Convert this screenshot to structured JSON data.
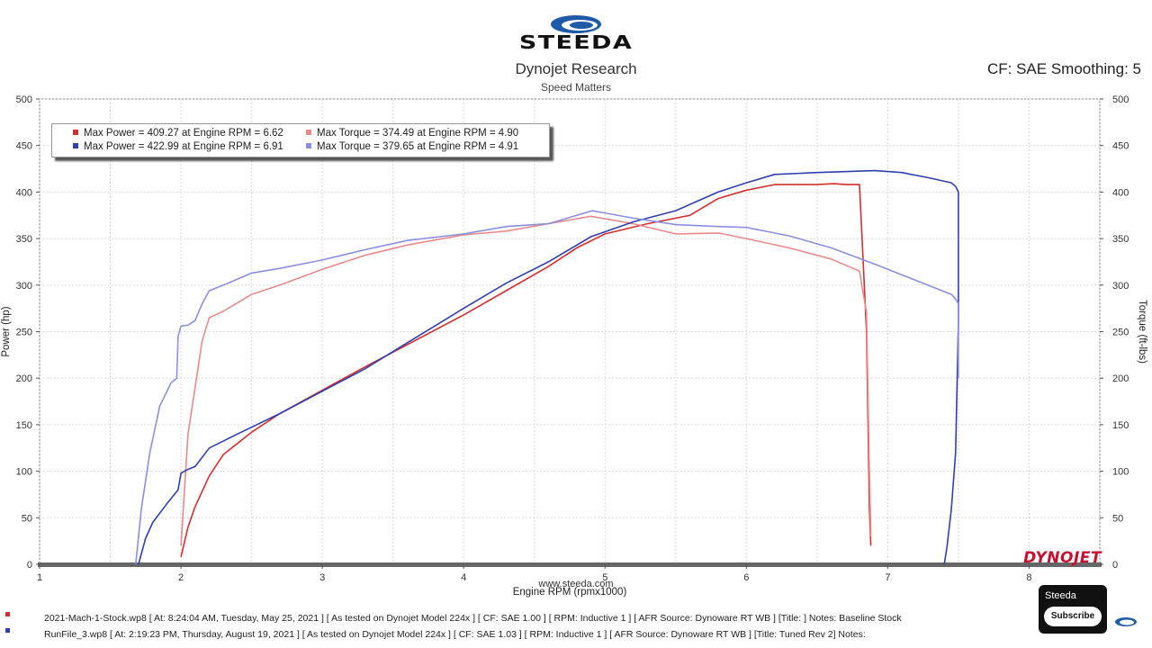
{
  "header": {
    "brand": "STEEDA",
    "title": "Dynojet Research",
    "subtitle": "Speed Matters",
    "cf": "CF: SAE Smoothing: 5"
  },
  "watermark": "DYNOJET",
  "url": "www.steeda.com",
  "legend": [
    {
      "text": "Max Power = 409.27 at Engine RPM = 6.62",
      "color": "#d32f2f"
    },
    {
      "text": "Max Torque = 374.49 at Engine RPM = 4.90",
      "color": "#e88a8a"
    },
    {
      "text": "Max Power = 422.99 at Engine RPM = 6.91",
      "color": "#2f3fb0"
    },
    {
      "text": "Max Torque = 379.65 at Engine RPM = 4.91",
      "color": "#8a8fe0"
    }
  ],
  "footer": [
    {
      "text": "2021-Mach-1-Stock.wp8 [ At: 8:24:04 AM, Tuesday, May 25, 2021 ] [ As tested on Dynojet Model 224x ] [ CF: SAE 1.00 ] [ RPM: Inductive 1 ] [ AFR Source: Dynoware RT WB ] [Title: ]  Notes: Baseline Stock",
      "color": "#d32f2f"
    },
    {
      "text": "RunFile_3.wp8 [ At: 2:19:23 PM, Thursday, August 19, 2021 ] [ As tested on Dynojet Model 224x ] [ CF: SAE 1.03 ] [ RPM: Inductive 1 ] [ AFR Source: Dynoware RT WB ] [Title: Tuned Rev 2]  Notes:",
      "color": "#2f3fb0"
    }
  ],
  "youtube": {
    "channel": "Steeda",
    "button": "Subscribe"
  },
  "chart_data": {
    "type": "line",
    "xlabel": "Engine RPM (rpmx1000)",
    "ylabel": "Power (hp)",
    "y2label": "Torque (ft-lbs)",
    "xlim": [
      1,
      8.5
    ],
    "ylim": [
      0,
      500
    ],
    "y2lim": [
      0,
      500
    ],
    "xticks": [
      1,
      2,
      3,
      4,
      5,
      6,
      7,
      8
    ],
    "yticks": [
      0,
      50,
      100,
      150,
      200,
      250,
      300,
      350,
      400,
      450,
      500
    ],
    "grid": true,
    "legend_position": "top-left",
    "series": [
      {
        "name": "Max Power = 409.27 at Engine RPM = 6.62",
        "axis": "left",
        "color": "#d32f2f",
        "x": [
          2.0,
          2.05,
          2.1,
          2.2,
          2.3,
          2.5,
          2.7,
          3.0,
          3.3,
          3.6,
          4.0,
          4.3,
          4.6,
          4.8,
          5.0,
          5.3,
          5.6,
          5.8,
          6.0,
          6.2,
          6.5,
          6.62,
          6.7,
          6.8,
          6.85,
          6.87,
          6.88
        ],
        "y": [
          8,
          40,
          62,
          95,
          118,
          142,
          162,
          187,
          212,
          236,
          268,
          294,
          320,
          340,
          355,
          366,
          375,
          393,
          402,
          408,
          408,
          409,
          408,
          408,
          250,
          60,
          20
        ]
      },
      {
        "name": "Max Torque = 374.49 at Engine RPM = 4.90",
        "axis": "right",
        "color": "#e88a8a",
        "x": [
          2.0,
          2.05,
          2.1,
          2.15,
          2.2,
          2.3,
          2.5,
          2.7,
          3.0,
          3.3,
          3.6,
          4.0,
          4.3,
          4.6,
          4.9,
          5.2,
          5.5,
          5.8,
          6.0,
          6.3,
          6.6,
          6.8,
          6.85,
          6.87,
          6.88
        ],
        "y": [
          20,
          140,
          190,
          240,
          265,
          272,
          290,
          300,
          317,
          332,
          343,
          354,
          358,
          366,
          374,
          366,
          355,
          356,
          350,
          340,
          328,
          315,
          270,
          100,
          30
        ]
      },
      {
        "name": "Max Power = 422.99 at Engine RPM = 6.91",
        "axis": "left",
        "color": "#2f3fb0",
        "x": [
          1.7,
          1.75,
          1.8,
          1.9,
          1.98,
          2.0,
          2.05,
          2.1,
          2.2,
          2.4,
          2.7,
          3.0,
          3.3,
          3.6,
          4.0,
          4.3,
          4.6,
          4.9,
          5.2,
          5.5,
          5.8,
          6.0,
          6.2,
          6.5,
          6.91,
          7.1,
          7.3,
          7.45,
          7.48,
          7.5,
          7.5,
          7.48,
          7.45,
          7.42,
          7.4
        ],
        "y": [
          0,
          28,
          45,
          65,
          80,
          98,
          102,
          105,
          125,
          140,
          162,
          186,
          210,
          238,
          275,
          302,
          325,
          352,
          368,
          380,
          400,
          410,
          419,
          421,
          423,
          421,
          415,
          410,
          406,
          400,
          260,
          120,
          60,
          20,
          0
        ]
      },
      {
        "name": "Max Torque = 379.65 at Engine RPM = 4.91",
        "axis": "right",
        "color": "#8a8fe0",
        "x": [
          1.68,
          1.72,
          1.78,
          1.85,
          1.93,
          1.97,
          1.98,
          2.0,
          2.05,
          2.1,
          2.15,
          2.2,
          2.3,
          2.5,
          2.7,
          3.0,
          3.3,
          3.6,
          4.0,
          4.3,
          4.6,
          4.91,
          5.2,
          5.5,
          5.8,
          6.0,
          6.3,
          6.6,
          6.9,
          7.2,
          7.45,
          7.48,
          7.5,
          7.5
        ],
        "y": [
          0,
          60,
          120,
          170,
          195,
          200,
          245,
          256,
          257,
          262,
          280,
          294,
          300,
          313,
          318,
          327,
          338,
          348,
          355,
          363,
          366,
          380,
          372,
          365,
          363,
          362,
          353,
          340,
          323,
          305,
          290,
          285,
          280,
          200
        ]
      }
    ]
  }
}
